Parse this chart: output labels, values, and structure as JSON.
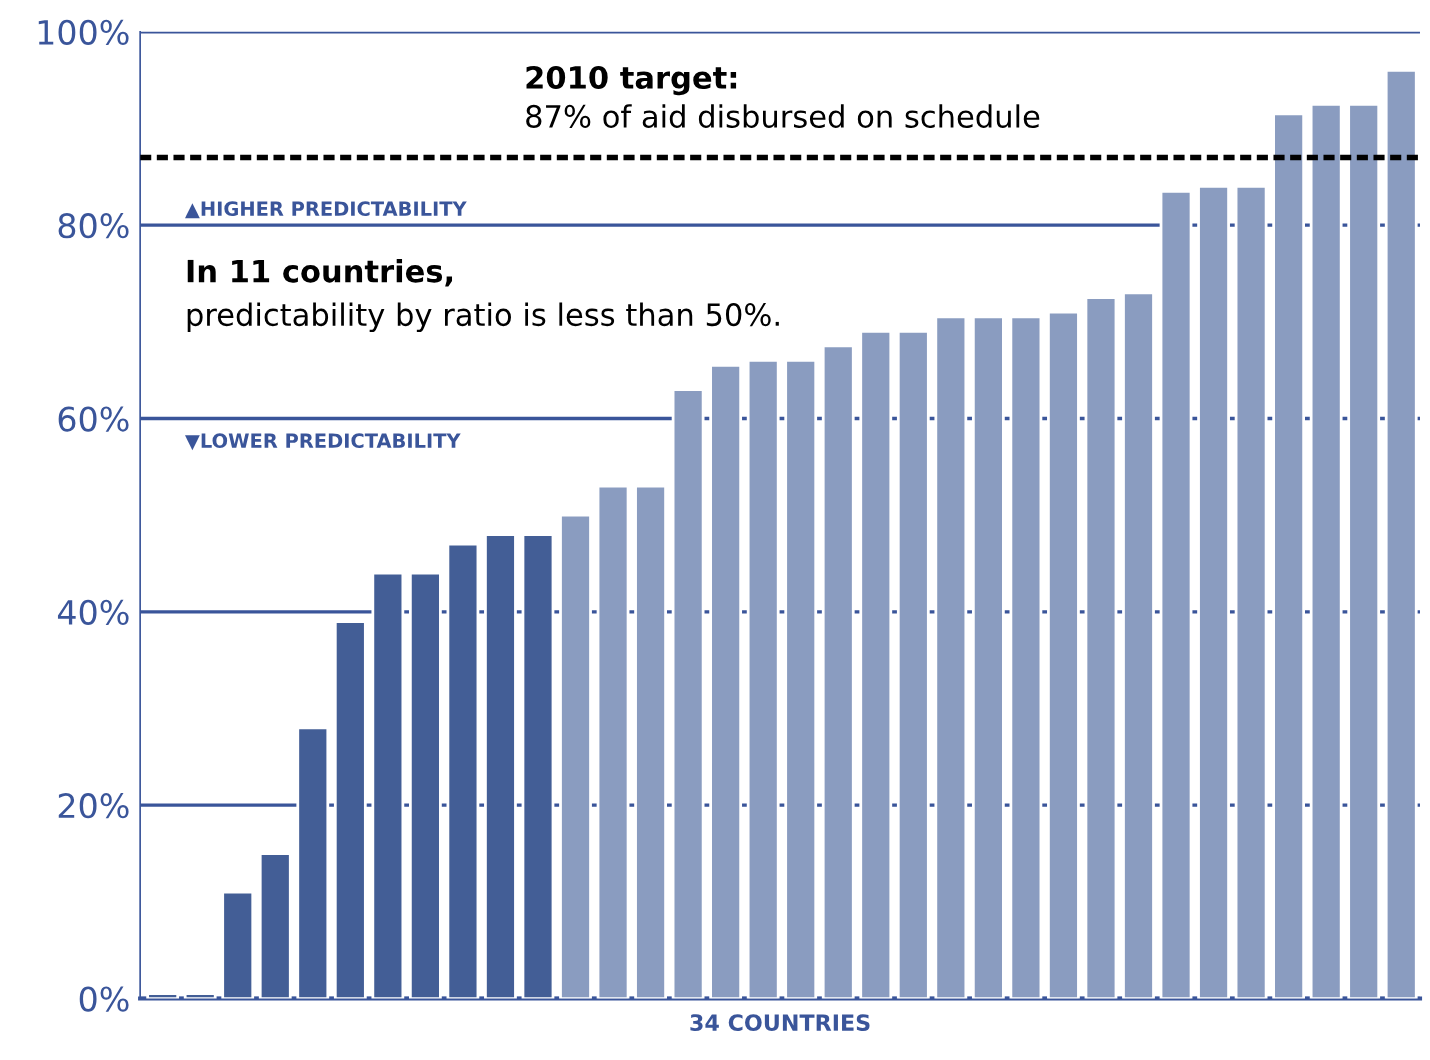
{
  "chart_data": {
    "type": "bar",
    "xlabel": "34 COUNTRIES",
    "categories": [
      null,
      null,
      null,
      null,
      null,
      null,
      null,
      null,
      null,
      null,
      null,
      null,
      null,
      null,
      null,
      null,
      null,
      null,
      null,
      null,
      null,
      null,
      null,
      null,
      null,
      null,
      null,
      null,
      null,
      null,
      null,
      null,
      null,
      null
    ],
    "values": [
      0.5,
      0.5,
      11,
      15,
      28,
      39,
      44,
      44,
      47,
      48,
      48,
      50,
      53,
      53,
      63,
      65.5,
      66,
      66,
      67.5,
      69,
      69,
      70.5,
      70.5,
      70.5,
      71,
      72.5,
      73,
      83.5,
      84,
      84,
      91.5,
      92.5,
      92.5,
      96
    ],
    "colors": [
      "#435e96",
      "#435e96",
      "#435e96",
      "#435e96",
      "#435e96",
      "#435e96",
      "#435e96",
      "#435e96",
      "#435e96",
      "#435e96",
      "#435e96",
      "#8a9cc0",
      "#8a9cc0",
      "#8a9cc0",
      "#8a9cc0",
      "#8a9cc0",
      "#8a9cc0",
      "#8a9cc0",
      "#8a9cc0",
      "#8a9cc0",
      "#8a9cc0",
      "#8a9cc0",
      "#8a9cc0",
      "#8a9cc0",
      "#8a9cc0",
      "#8a9cc0",
      "#8a9cc0",
      "#8a9cc0",
      "#8a9cc0",
      "#8a9cc0",
      "#8a9cc0",
      "#8a9cc0",
      "#8a9cc0",
      "#8a9cc0"
    ],
    "ylim": [
      0,
      100
    ],
    "yticks": [
      {
        "value": 0,
        "label": "0%"
      },
      {
        "value": 20,
        "label": "20%"
      },
      {
        "value": 40,
        "label": "40%"
      },
      {
        "value": 60,
        "label": "60%"
      },
      {
        "value": 80,
        "label": "80%"
      },
      {
        "value": 100,
        "label": "100%"
      }
    ],
    "grid": "y",
    "ref_lines": [
      {
        "axis": "y",
        "value": 87,
        "color": "#000000",
        "line_style": "dashed"
      }
    ],
    "annotations": [
      "2010 target:",
      "87% of aid disbursed on schedule",
      "▲HIGHER PREDICTABILITY",
      "▼LOWER PREDICTABILITY",
      "In 11 countries,",
      "predictability by ratio is less than 50%."
    ]
  }
}
